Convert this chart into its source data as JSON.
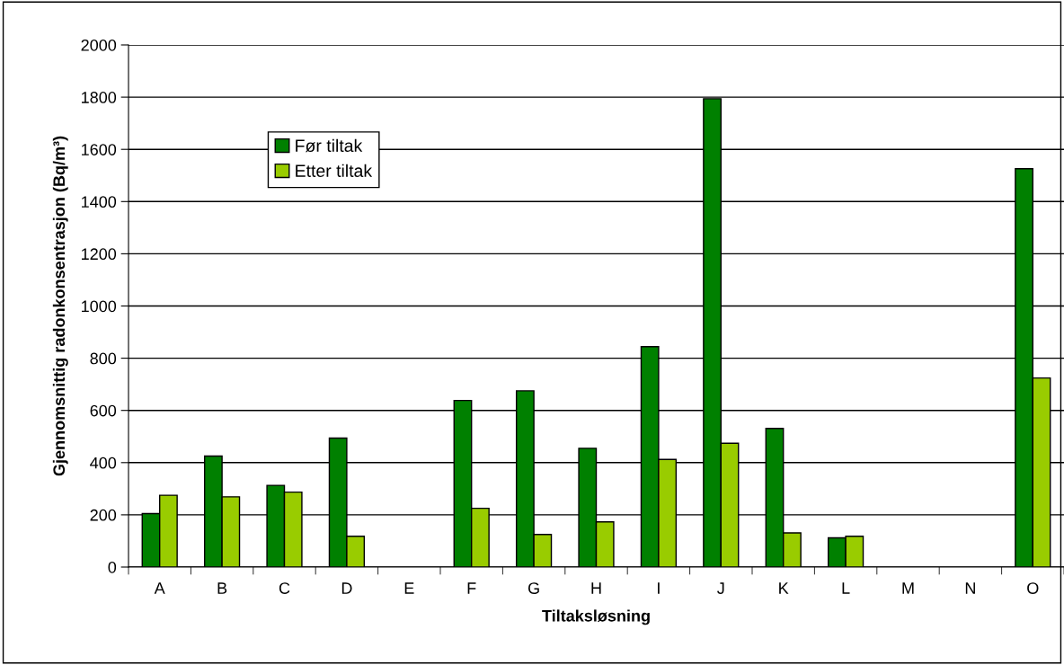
{
  "chart_data": {
    "type": "bar",
    "xlabel": "Tiltaksløsning",
    "ylabel": "Gjennomsnittig radonkonsentrasjon (Bq/m³)",
    "categories": [
      "A",
      "B",
      "C",
      "D",
      "E",
      "F",
      "G",
      "H",
      "I",
      "J",
      "K",
      "L",
      "M",
      "N",
      "O"
    ],
    "series": [
      {
        "name": "Før tiltak",
        "color": "#008000",
        "values": [
          205,
          425,
          313,
          494,
          null,
          638,
          675,
          455,
          844,
          1794,
          531,
          112,
          null,
          null,
          1526
        ]
      },
      {
        "name": "Etter tiltak",
        "color": "#99cc00",
        "values": [
          275,
          269,
          287,
          118,
          null,
          225,
          125,
          173,
          412,
          474,
          131,
          118,
          null,
          null,
          724
        ]
      }
    ],
    "ylim": [
      0,
      2000
    ],
    "yticks": [
      0,
      200,
      400,
      600,
      800,
      1000,
      1200,
      1400,
      1600,
      1800,
      2000
    ],
    "grid": "y",
    "legend": "top left"
  }
}
